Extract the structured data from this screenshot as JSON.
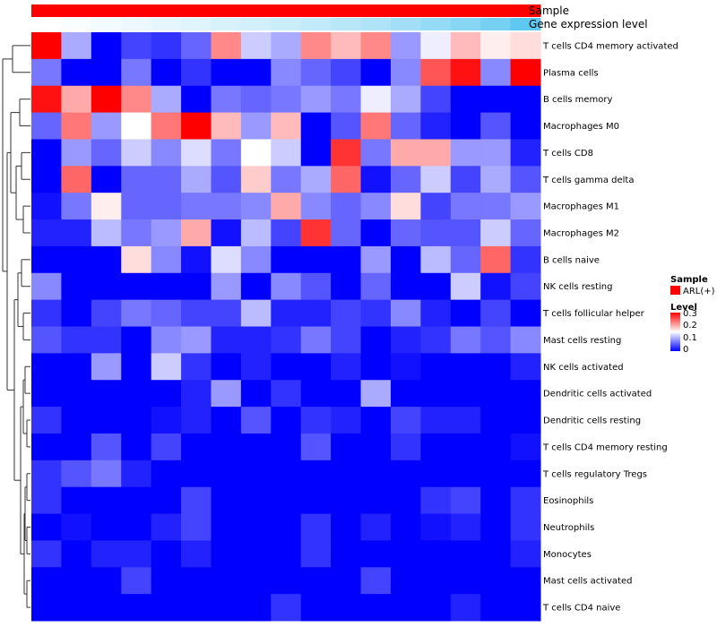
{
  "chart_data": {
    "type": "heatmap",
    "annotations": {
      "top_track_label": "Sample",
      "second_track_label": "Gene expression level"
    },
    "legend": {
      "sample_title": "Sample",
      "sample_item": "ARL(+)",
      "level_title": "Level",
      "level_ticks": [
        "0.3",
        "0.2",
        "0.1",
        "0"
      ]
    },
    "colors": {
      "sample": "#ff0000",
      "low": "#0000ff",
      "mid": "#ffffff",
      "high": "#ff0000",
      "expr_low": "#ffffff",
      "expr_high": "#5ec8f0"
    },
    "scale": {
      "min": 0,
      "max": 0.3,
      "mid": 0.15
    },
    "rows": [
      "T cells CD4 memory activated",
      "Plasma cells",
      "B cells memory",
      "Macrophages M0",
      "T cells CD8",
      "T cells gamma delta",
      "Macrophages M1",
      "Macrophages M2",
      "B cells naive",
      "NK cells resting",
      "T cells follicular helper",
      "Mast cells resting",
      "NK cells activated",
      "Dendritic cells activated",
      "Dendritic cells resting",
      "T cells CD4 memory resting",
      "T cells regulatory  Tregs",
      "Eosinophils",
      "Neutrophils",
      "Monocytes",
      "Mast cells activated",
      "T cells CD4 naive"
    ],
    "values": [
      [
        0.3,
        0.1,
        0.0,
        0.04,
        0.03,
        0.06,
        0.22,
        0.12,
        0.1,
        0.22,
        0.19,
        0.22,
        0.09,
        0.14,
        0.19,
        0.16,
        0.17
      ],
      [
        0.07,
        0.0,
        0.0,
        0.07,
        0.0,
        0.03,
        0.0,
        0.0,
        0.08,
        0.06,
        0.04,
        0.0,
        0.08,
        0.25,
        0.29,
        0.08,
        0.3
      ],
      [
        0.29,
        0.2,
        0.3,
        0.22,
        0.1,
        0.0,
        0.07,
        0.06,
        0.07,
        0.09,
        0.07,
        0.14,
        0.1,
        0.04,
        0.0,
        0.0,
        0.0
      ],
      [
        0.06,
        0.23,
        0.09,
        0.15,
        0.23,
        0.3,
        0.19,
        0.09,
        0.19,
        0.0,
        0.05,
        0.23,
        0.06,
        0.02,
        0.0,
        0.05,
        0.0
      ],
      [
        0.0,
        0.09,
        0.06,
        0.12,
        0.08,
        0.13,
        0.07,
        0.15,
        0.12,
        0.0,
        0.27,
        0.07,
        0.2,
        0.2,
        0.09,
        0.09,
        0.02
      ],
      [
        0.0,
        0.24,
        0.0,
        0.06,
        0.06,
        0.1,
        0.05,
        0.18,
        0.07,
        0.1,
        0.24,
        0.01,
        0.06,
        0.12,
        0.04,
        0.1,
        0.05
      ],
      [
        0.01,
        0.07,
        0.16,
        0.06,
        0.06,
        0.07,
        0.07,
        0.08,
        0.2,
        0.08,
        0.06,
        0.08,
        0.17,
        0.04,
        0.07,
        0.07,
        0.09
      ],
      [
        0.02,
        0.02,
        0.11,
        0.07,
        0.09,
        0.2,
        0.01,
        0.11,
        0.04,
        0.27,
        0.06,
        0.0,
        0.06,
        0.05,
        0.05,
        0.12,
        0.06
      ],
      [
        0.0,
        0.0,
        0.0,
        0.17,
        0.08,
        0.01,
        0.13,
        0.08,
        0.0,
        0.0,
        0.0,
        0.09,
        0.0,
        0.11,
        0.06,
        0.24,
        0.03
      ],
      [
        0.08,
        0.0,
        0.0,
        0.0,
        0.0,
        0.0,
        0.09,
        0.0,
        0.08,
        0.05,
        0.0,
        0.06,
        0.0,
        0.0,
        0.12,
        0.01,
        0.04
      ],
      [
        0.03,
        0.0,
        0.04,
        0.07,
        0.06,
        0.04,
        0.04,
        0.11,
        0.02,
        0.02,
        0.04,
        0.03,
        0.08,
        0.02,
        0.0,
        0.04,
        0.0
      ],
      [
        0.05,
        0.03,
        0.03,
        0.0,
        0.08,
        0.09,
        0.02,
        0.02,
        0.03,
        0.07,
        0.04,
        0.0,
        0.02,
        0.03,
        0.07,
        0.05,
        0.08
      ],
      [
        0.0,
        0.0,
        0.09,
        0.0,
        0.12,
        0.03,
        0.0,
        0.02,
        0.0,
        0.0,
        0.02,
        0.0,
        0.01,
        0.0,
        0.0,
        0.0,
        0.02
      ],
      [
        0.0,
        0.0,
        0.0,
        0.0,
        0.0,
        0.02,
        0.09,
        0.0,
        0.03,
        0.0,
        0.0,
        0.1,
        0.0,
        0.0,
        0.0,
        0.0,
        0.0
      ],
      [
        0.03,
        0.0,
        0.0,
        0.0,
        0.01,
        0.02,
        0.0,
        0.05,
        0.0,
        0.03,
        0.02,
        0.0,
        0.04,
        0.02,
        0.02,
        0.0,
        0.0
      ],
      [
        0.0,
        0.0,
        0.05,
        0.0,
        0.04,
        0.0,
        0.0,
        0.0,
        0.0,
        0.05,
        0.0,
        0.0,
        0.03,
        0.0,
        0.0,
        0.0,
        0.01
      ],
      [
        0.03,
        0.05,
        0.07,
        0.02,
        0.0,
        0.0,
        0.0,
        0.0,
        0.0,
        0.0,
        0.0,
        0.0,
        0.0,
        0.0,
        0.0,
        0.0,
        0.0
      ],
      [
        0.03,
        0.0,
        0.0,
        0.0,
        0.0,
        0.04,
        0.0,
        0.0,
        0.0,
        0.0,
        0.0,
        0.0,
        0.0,
        0.03,
        0.04,
        0.0,
        0.03
      ],
      [
        0.0,
        0.01,
        0.0,
        0.0,
        0.02,
        0.04,
        0.0,
        0.0,
        0.0,
        0.03,
        0.0,
        0.02,
        0.0,
        0.01,
        0.02,
        0.0,
        0.03
      ],
      [
        0.03,
        0.0,
        0.02,
        0.02,
        0.0,
        0.02,
        0.0,
        0.0,
        0.0,
        0.03,
        0.0,
        0.0,
        0.0,
        0.0,
        0.0,
        0.0,
        0.02
      ],
      [
        0.0,
        0.0,
        0.0,
        0.04,
        0.0,
        0.0,
        0.0,
        0.0,
        0.0,
        0.0,
        0.0,
        0.04,
        0.0,
        0.0,
        0.0,
        0.0,
        0.0
      ],
      [
        0.0,
        0.0,
        0.0,
        0.0,
        0.0,
        0.0,
        0.0,
        0.0,
        0.03,
        0.0,
        0.0,
        0.0,
        0.0,
        0.0,
        0.02,
        0.0,
        0.0
      ]
    ],
    "sample_group": [
      "ARL(+)",
      "ARL(+)",
      "ARL(+)",
      "ARL(+)",
      "ARL(+)",
      "ARL(+)",
      "ARL(+)",
      "ARL(+)",
      "ARL(+)",
      "ARL(+)",
      "ARL(+)",
      "ARL(+)",
      "ARL(+)",
      "ARL(+)",
      "ARL(+)",
      "ARL(+)",
      "ARL(+)"
    ],
    "gene_expression_level": [
      0.0,
      0.04,
      0.08,
      0.12,
      0.16,
      0.2,
      0.24,
      0.28,
      0.33,
      0.38,
      0.44,
      0.5,
      0.58,
      0.66,
      0.75,
      0.86,
      1.0
    ],
    "row_dendrogram": true
  }
}
